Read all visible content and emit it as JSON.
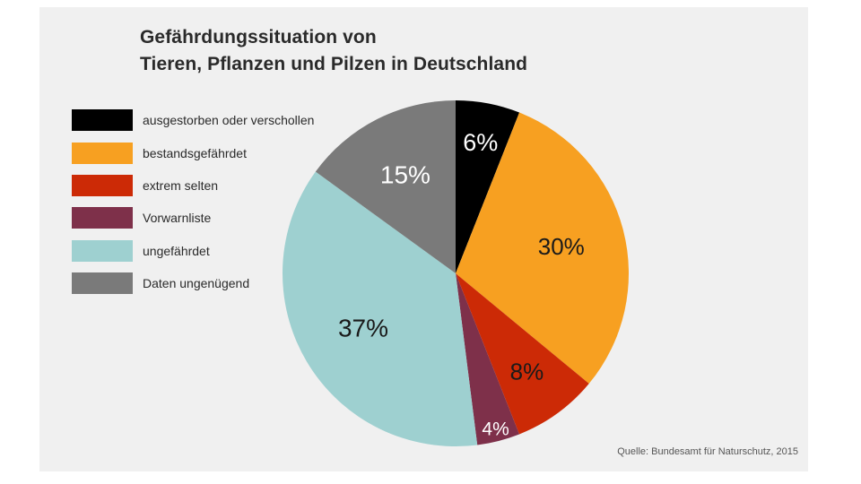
{
  "chart_data": {
    "type": "pie",
    "title": "Gefährdungssituation von",
    "subtitle": "Tieren, Pflanzen und Pilzen in Deutschland",
    "slices": [
      {
        "label": "ausgestorben oder verschollen",
        "value": 6,
        "value_label": "6%",
        "color": "#000000",
        "text_color": "#ffffff"
      },
      {
        "label": "bestandsgefährdet",
        "value": 30,
        "value_label": "30%",
        "color": "#f7a021",
        "text_color": "#1a1a1a"
      },
      {
        "label": "extrem selten",
        "value": 8,
        "value_label": "8%",
        "color": "#cc2a06",
        "text_color": "#1a1a1a"
      },
      {
        "label": "Vorwarnliste",
        "value": 4,
        "value_label": "4%",
        "color": "#7e304a",
        "text_color": "#ffffff"
      },
      {
        "label": "ungefährdet",
        "value": 37,
        "value_label": "37%",
        "color": "#9ed0d0",
        "text_color": "#1a1a1a"
      },
      {
        "label": "Daten ungenügend",
        "value": 15,
        "value_label": "15%",
        "color": "#7a7a7a",
        "text_color": "#ffffff"
      }
    ],
    "legend_position": "left",
    "source": "Quelle: Bundesamt für Naturschutz, 2015"
  }
}
